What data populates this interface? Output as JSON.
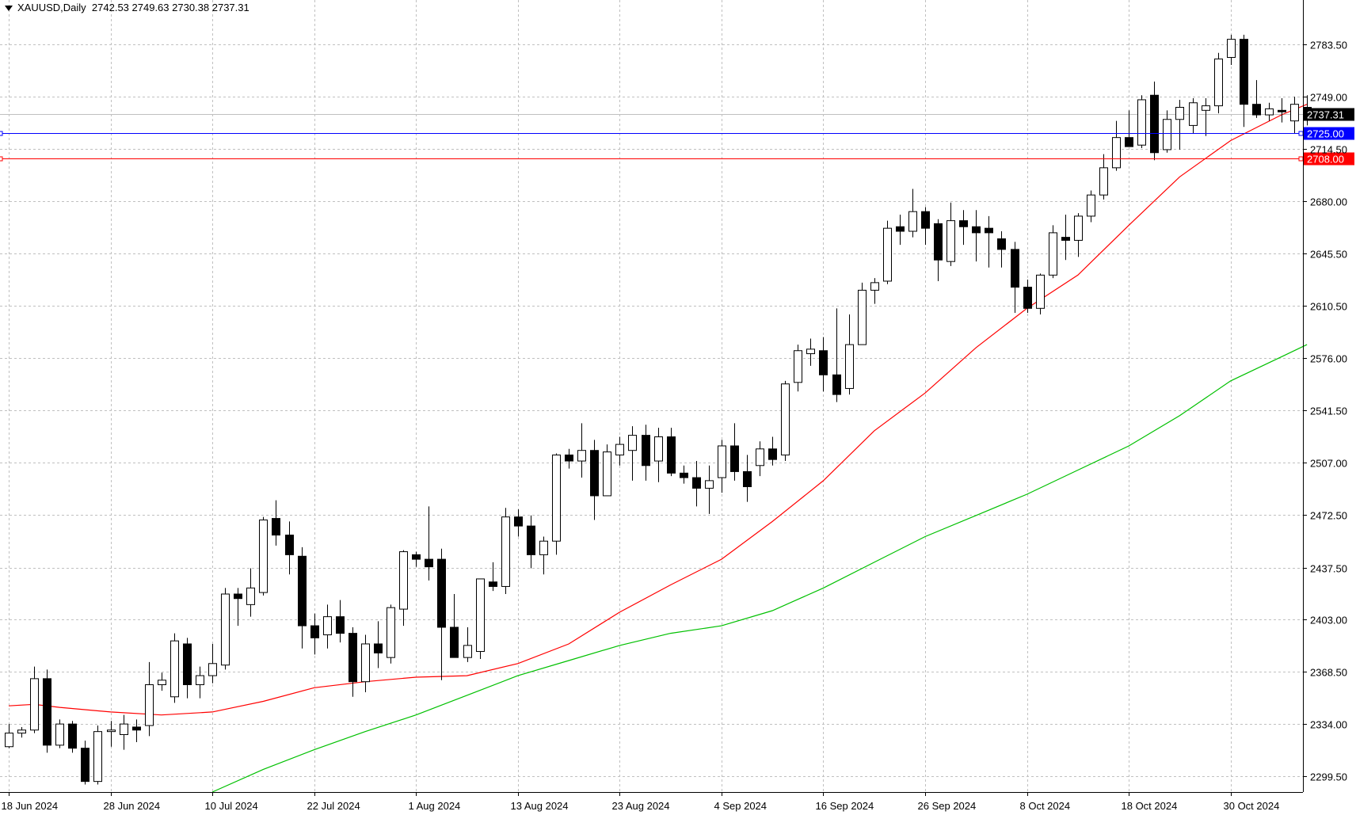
{
  "header": {
    "symbol": "XAUUSD,Daily",
    "ohlc": "2742.53 2749.63 2730.38 2737.31"
  },
  "colors": {
    "bull_fill": "#ffffff",
    "bear_fill": "#000000",
    "grid": "#c0c0c0",
    "ma_red": "#ff0000",
    "ma_green": "#00c000",
    "line_blue": "#0000ff",
    "line_red": "#ff0000",
    "price_line": "#c0c0c0"
  },
  "chart_data": {
    "type": "candlestick",
    "symbol": "XAUUSD",
    "timeframe": "Daily",
    "ylim": [
      2289,
      2813
    ],
    "y_ticks": [
      2299.5,
      2334.0,
      2368.5,
      2403.0,
      2437.5,
      2472.5,
      2507.0,
      2541.5,
      2576.0,
      2610.5,
      2645.5,
      2680.0,
      2714.5,
      2749.0,
      2783.5
    ],
    "y_tick_labels": [
      "2299.50",
      "2334.00",
      "2368.50",
      "2403.00",
      "2437.50",
      "2472.50",
      "2507.00",
      "2541.50",
      "2576.00",
      "2610.50",
      "2645.50",
      "2680.00",
      "2714.50",
      "2749.00",
      "2783.50"
    ],
    "x_labels": [
      {
        "index": 0,
        "label": "18 Jun 2024"
      },
      {
        "index": 8,
        "label": "28 Jun 2024"
      },
      {
        "index": 16,
        "label": "10 Jul 2024"
      },
      {
        "index": 24,
        "label": "22 Jul 2024"
      },
      {
        "index": 32,
        "label": "1 Aug 2024"
      },
      {
        "index": 40,
        "label": "13 Aug 2024"
      },
      {
        "index": 48,
        "label": "23 Aug 2024"
      },
      {
        "index": 56,
        "label": "4 Sep 2024"
      },
      {
        "index": 64,
        "label": "16 Sep 2024"
      },
      {
        "index": 72,
        "label": "26 Sep 2024"
      },
      {
        "index": 80,
        "label": "8 Oct 2024"
      },
      {
        "index": 88,
        "label": "18 Oct 2024"
      },
      {
        "index": 96,
        "label": "30 Oct 2024"
      }
    ],
    "candles": [
      [
        2319,
        2334,
        2318,
        2328
      ],
      [
        2328,
        2332,
        2325,
        2330
      ],
      [
        2330,
        2372,
        2328,
        2364
      ],
      [
        2364,
        2370,
        2315,
        2320
      ],
      [
        2320,
        2337,
        2318,
        2334
      ],
      [
        2334,
        2336,
        2315,
        2318
      ],
      [
        2318,
        2323,
        2294,
        2296
      ],
      [
        2296,
        2333,
        2294,
        2329
      ],
      [
        2329,
        2336,
        2319,
        2330
      ],
      [
        2327,
        2340,
        2317,
        2334
      ],
      [
        2332,
        2337,
        2322,
        2330
      ],
      [
        2333,
        2375,
        2326,
        2360
      ],
      [
        2360,
        2368,
        2356,
        2363
      ],
      [
        2352,
        2394,
        2348,
        2389
      ],
      [
        2387,
        2391,
        2351,
        2360
      ],
      [
        2360,
        2372,
        2351,
        2366
      ],
      [
        2366,
        2387,
        2361,
        2374
      ],
      [
        2373,
        2424,
        2370,
        2420
      ],
      [
        2420,
        2424,
        2399,
        2417
      ],
      [
        2413,
        2437,
        2405,
        2424
      ],
      [
        2421,
        2471,
        2419,
        2469
      ],
      [
        2470,
        2482,
        2452,
        2459
      ],
      [
        2459,
        2468,
        2433,
        2446
      ],
      [
        2445,
        2451,
        2384,
        2399
      ],
      [
        2399,
        2407,
        2380,
        2391
      ],
      [
        2393,
        2413,
        2384,
        2405
      ],
      [
        2405,
        2416,
        2388,
        2394
      ],
      [
        2394,
        2398,
        2352,
        2362
      ],
      [
        2362,
        2393,
        2355,
        2387
      ],
      [
        2387,
        2402,
        2371,
        2381
      ],
      [
        2378,
        2413,
        2374,
        2411
      ],
      [
        2410,
        2449,
        2399,
        2448
      ],
      [
        2446,
        2448,
        2438,
        2443
      ],
      [
        2443,
        2478,
        2429,
        2438
      ],
      [
        2443,
        2450,
        2363,
        2398
      ],
      [
        2398,
        2420,
        2380,
        2378
      ],
      [
        2378,
        2398,
        2375,
        2386
      ],
      [
        2382,
        2430,
        2377,
        2430
      ],
      [
        2428,
        2441,
        2422,
        2425
      ],
      [
        2425,
        2477,
        2420,
        2471
      ],
      [
        2471,
        2476,
        2458,
        2465
      ],
      [
        2465,
        2472,
        2437,
        2446
      ],
      [
        2446,
        2458,
        2433,
        2455
      ],
      [
        2455,
        2513,
        2446,
        2512
      ],
      [
        2512,
        2516,
        2503,
        2508
      ],
      [
        2508,
        2533,
        2497,
        2515
      ],
      [
        2515,
        2522,
        2469,
        2485
      ],
      [
        2485,
        2519,
        2486,
        2514
      ],
      [
        2512,
        2524,
        2505,
        2519
      ],
      [
        2515,
        2531,
        2495,
        2525
      ],
      [
        2525,
        2532,
        2495,
        2505
      ],
      [
        2508,
        2530,
        2494,
        2524
      ],
      [
        2524,
        2530,
        2498,
        2500
      ],
      [
        2500,
        2505,
        2493,
        2497
      ],
      [
        2497,
        2508,
        2478,
        2490
      ],
      [
        2490,
        2505,
        2473,
        2495
      ],
      [
        2497,
        2522,
        2487,
        2518
      ],
      [
        2518,
        2533,
        2495,
        2501
      ],
      [
        2501,
        2512,
        2481,
        2491
      ],
      [
        2505,
        2521,
        2498,
        2516
      ],
      [
        2516,
        2524,
        2505,
        2509
      ],
      [
        2512,
        2561,
        2508,
        2559
      ],
      [
        2560,
        2585,
        2554,
        2581
      ],
      [
        2579,
        2589,
        2571,
        2582
      ],
      [
        2581,
        2590,
        2554,
        2565
      ],
      [
        2565,
        2609,
        2547,
        2552
      ],
      [
        2556,
        2605,
        2552,
        2585
      ],
      [
        2585,
        2626,
        2585,
        2621
      ],
      [
        2621,
        2629,
        2612,
        2626
      ],
      [
        2627,
        2667,
        2625,
        2662
      ],
      [
        2663,
        2671,
        2651,
        2660
      ],
      [
        2660,
        2688,
        2656,
        2673
      ],
      [
        2673,
        2676,
        2651,
        2662
      ],
      [
        2665,
        2668,
        2627,
        2641
      ],
      [
        2640,
        2679,
        2637,
        2667
      ],
      [
        2667,
        2674,
        2651,
        2663
      ],
      [
        2663,
        2674,
        2640,
        2659
      ],
      [
        2662,
        2670,
        2636,
        2659
      ],
      [
        2655,
        2660,
        2636,
        2648
      ],
      [
        2648,
        2653,
        2606,
        2623
      ],
      [
        2623,
        2628,
        2606,
        2609
      ],
      [
        2609,
        2632,
        2605,
        2631
      ],
      [
        2631,
        2664,
        2629,
        2659
      ],
      [
        2656,
        2671,
        2641,
        2654
      ],
      [
        2654,
        2672,
        2643,
        2670
      ],
      [
        2670,
        2687,
        2666,
        2684
      ],
      [
        2684,
        2711,
        2681,
        2702
      ],
      [
        2702,
        2733,
        2700,
        2722
      ],
      [
        2722,
        2740,
        2716,
        2716
      ],
      [
        2717,
        2750,
        2715,
        2747
      ],
      [
        2750,
        2759,
        2707,
        2712
      ],
      [
        2714,
        2740,
        2712,
        2734
      ],
      [
        2734,
        2747,
        2714,
        2742
      ],
      [
        2730,
        2748,
        2725,
        2745
      ],
      [
        2740,
        2748,
        2723,
        2743
      ],
      [
        2743,
        2778,
        2738,
        2774
      ],
      [
        2775,
        2790,
        2770,
        2787
      ],
      [
        2787,
        2790,
        2729,
        2744
      ],
      [
        2744,
        2760,
        2735,
        2737
      ],
      [
        2737,
        2745,
        2733,
        2741
      ],
      [
        2740,
        2748,
        2732,
        2739
      ],
      [
        2733,
        2749,
        2725,
        2744
      ],
      [
        2742,
        2750,
        2730,
        2737
      ]
    ],
    "ma_red": [
      {
        "i": 0,
        "v": 2346
      },
      {
        "i": 2,
        "v": 2347
      },
      {
        "i": 4,
        "v": 2345
      },
      {
        "i": 8,
        "v": 2342
      },
      {
        "i": 12,
        "v": 2340
      },
      {
        "i": 16,
        "v": 2342
      },
      {
        "i": 20,
        "v": 2349
      },
      {
        "i": 24,
        "v": 2358
      },
      {
        "i": 28,
        "v": 2362
      },
      {
        "i": 32,
        "v": 2365
      },
      {
        "i": 36,
        "v": 2366
      },
      {
        "i": 40,
        "v": 2374
      },
      {
        "i": 44,
        "v": 2387
      },
      {
        "i": 48,
        "v": 2408
      },
      {
        "i": 52,
        "v": 2426
      },
      {
        "i": 56,
        "v": 2443
      },
      {
        "i": 60,
        "v": 2468
      },
      {
        "i": 64,
        "v": 2495
      },
      {
        "i": 68,
        "v": 2528
      },
      {
        "i": 72,
        "v": 2553
      },
      {
        "i": 76,
        "v": 2583
      },
      {
        "i": 80,
        "v": 2609
      },
      {
        "i": 84,
        "v": 2631
      },
      {
        "i": 88,
        "v": 2664
      },
      {
        "i": 92,
        "v": 2696
      },
      {
        "i": 96,
        "v": 2720
      },
      {
        "i": 100,
        "v": 2737
      },
      {
        "i": 102,
        "v": 2744
      }
    ],
    "ma_green": [
      {
        "i": 16,
        "v": 2289
      },
      {
        "i": 20,
        "v": 2304
      },
      {
        "i": 24,
        "v": 2317
      },
      {
        "i": 28,
        "v": 2329
      },
      {
        "i": 32,
        "v": 2340
      },
      {
        "i": 36,
        "v": 2353
      },
      {
        "i": 40,
        "v": 2366
      },
      {
        "i": 44,
        "v": 2376
      },
      {
        "i": 48,
        "v": 2386
      },
      {
        "i": 52,
        "v": 2394
      },
      {
        "i": 56,
        "v": 2399
      },
      {
        "i": 60,
        "v": 2409
      },
      {
        "i": 64,
        "v": 2424
      },
      {
        "i": 68,
        "v": 2441
      },
      {
        "i": 72,
        "v": 2458
      },
      {
        "i": 76,
        "v": 2472
      },
      {
        "i": 80,
        "v": 2486
      },
      {
        "i": 84,
        "v": 2502
      },
      {
        "i": 88,
        "v": 2518
      },
      {
        "i": 92,
        "v": 2538
      },
      {
        "i": 96,
        "v": 2561
      },
      {
        "i": 100,
        "v": 2577
      },
      {
        "i": 102,
        "v": 2585
      }
    ],
    "current_price": 2737.31,
    "current_price_label": "2737.31",
    "hlines": [
      {
        "name": "blue-level-line",
        "value": 2725.0,
        "label": "2725.00",
        "color": "#0000ff"
      },
      {
        "name": "red-level-line",
        "value": 2708.0,
        "label": "2708.00",
        "color": "#ff0000"
      }
    ]
  }
}
